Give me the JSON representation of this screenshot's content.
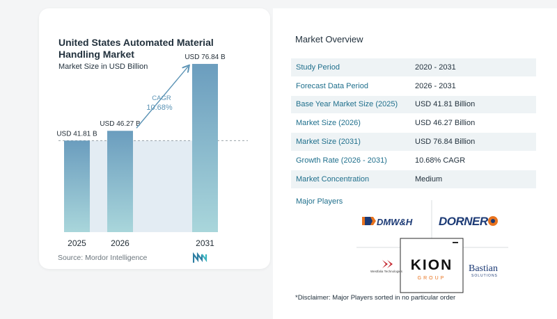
{
  "report": {
    "title": "United States Automated Material Handling Market",
    "subtitle": "Market Size in USD Billion",
    "source": "Source:  Mordor Intelligence"
  },
  "chart_data": {
    "type": "bar",
    "categories": [
      "2025",
      "2026",
      "2031"
    ],
    "values": [
      41.81,
      46.27,
      76.84
    ],
    "data_labels": [
      "USD 41.81 B",
      "USD 46.27 B",
      "USD 76.84 B"
    ],
    "title": "United States Automated Material Handling Market",
    "subtitle": "Market Size in USD Billion",
    "ylim": [
      0,
      80
    ],
    "grid": false,
    "colors": {
      "bar_top": "#6b9dbe",
      "bar_bottom": "#a9d6db",
      "shade": "#e3ecf3",
      "arrow": "#5b93b5"
    },
    "annotation": {
      "label": "CAGR",
      "value": "10.68%",
      "from": "2026",
      "to": "2031"
    }
  },
  "overview": {
    "title": "Market Overview",
    "rows": [
      {
        "label": "Study Period",
        "value": "2020 - 2031"
      },
      {
        "label": "Forecast Data Period",
        "value": "2026 - 2031"
      },
      {
        "label": "Base Year Market Size (2025)",
        "value": "USD 41.81 Billion"
      },
      {
        "label": "Market Size (2026)",
        "value": "USD 46.27 Billion"
      },
      {
        "label": "Market Size (2031)",
        "value": "USD 76.84 Billion"
      },
      {
        "label": "Growth Rate (2026 - 2031)",
        "value": "10.68% CAGR"
      },
      {
        "label": "Market Concentration",
        "value": "Medium"
      }
    ]
  },
  "players": {
    "title": "Major Players",
    "logos": {
      "dmw": "DMW&H",
      "dorner": "DORNER",
      "kion_main": "KION",
      "kion_sub": "GROUP",
      "westfalia": "Westfalia Technologies",
      "bastian_main": "Bastian",
      "bastian_sub": "SOLUTIONS"
    }
  },
  "disclaimer": "*Disclaimer: Major Players sorted in no particular order"
}
